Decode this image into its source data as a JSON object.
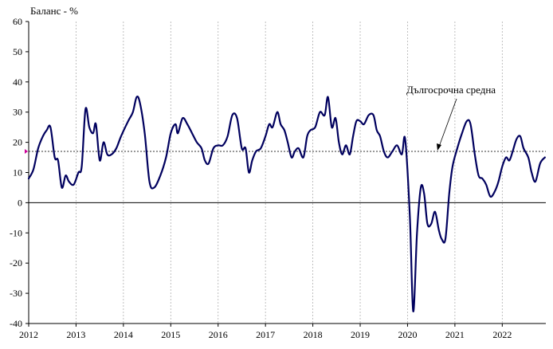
{
  "chart_data": {
    "type": "line",
    "ylabel": "Баланс - %",
    "ylim": [
      -40,
      60
    ],
    "yticks": [
      "60",
      "50",
      "40",
      "30",
      "20",
      "10",
      "0",
      "-10",
      "-20",
      "-30",
      "-40"
    ],
    "xticks": [
      "2012",
      "2013",
      "2014",
      "2015",
      "2016",
      "2017",
      "2018",
      "2019",
      "2020",
      "2021",
      "2022"
    ],
    "xlim": [
      2012.0,
      2022.92
    ],
    "vertical_grid": true,
    "horizontal_grid": false,
    "long_term_average": 17.0,
    "annotation": "Дългосрочна средна",
    "colors": {
      "series": "#00005e",
      "average": "#333333",
      "marker": "#cc0099"
    },
    "series": [
      {
        "x": [
          2012.0,
          2012.1,
          2012.2,
          2012.3,
          2012.38,
          2012.46,
          2012.55,
          2012.62,
          2012.7,
          2012.78,
          2012.85,
          2012.95,
          2013.05,
          2013.12,
          2013.2,
          2013.28,
          2013.36,
          2013.42,
          2013.5,
          2013.58,
          2013.66,
          2013.75,
          2013.85,
          2013.95,
          2014.1,
          2014.2,
          2014.28,
          2014.35,
          2014.45,
          2014.55,
          2014.65,
          2014.78,
          2014.9,
          2015.0,
          2015.1,
          2015.15,
          2015.25,
          2015.35,
          2015.45,
          2015.55,
          2015.65,
          2015.72,
          2015.8,
          2015.9,
          2016.0,
          2016.1,
          2016.2,
          2016.3,
          2016.4,
          2016.5,
          2016.58,
          2016.65,
          2016.72,
          2016.8,
          2016.9,
          2017.0,
          2017.08,
          2017.15,
          2017.25,
          2017.32,
          2017.4,
          2017.47,
          2017.55,
          2017.62,
          2017.7,
          2017.8,
          2017.88,
          2017.95,
          2018.05,
          2018.15,
          2018.25,
          2018.32,
          2018.4,
          2018.48,
          2018.55,
          2018.62,
          2018.7,
          2018.78,
          2018.85,
          2018.92,
          2019.0,
          2019.08,
          2019.18,
          2019.28,
          2019.35,
          2019.42,
          2019.5,
          2019.58,
          2019.68,
          2019.78,
          2019.88,
          2019.95,
          2020.05,
          2020.12,
          2020.2,
          2020.28,
          2020.35,
          2020.42,
          2020.5,
          2020.58,
          2020.66,
          2020.72,
          2020.8,
          2020.88,
          2020.95,
          2021.05,
          2021.15,
          2021.25,
          2021.33,
          2021.42,
          2021.5,
          2021.58,
          2021.66,
          2021.75,
          2021.85,
          2021.92,
          2022.0,
          2022.08,
          2022.15,
          2022.22,
          2022.3,
          2022.38,
          2022.45,
          2022.55,
          2022.62,
          2022.7,
          2022.8,
          2022.9
        ],
        "y": [
          8,
          11,
          18,
          22,
          24,
          25,
          15,
          14,
          5,
          9,
          7,
          6,
          10,
          12,
          31,
          25,
          23,
          26,
          14,
          20,
          16,
          16,
          18,
          22,
          27,
          30,
          35,
          33,
          23,
          7,
          5,
          9,
          15,
          23,
          26,
          23,
          28,
          26,
          23,
          20,
          18,
          14,
          13,
          18,
          19,
          19,
          22,
          29,
          28,
          18,
          18,
          10,
          14,
          17,
          18,
          22,
          26,
          25,
          30,
          26,
          24,
          20,
          15,
          17,
          18,
          15,
          22,
          24,
          25,
          30,
          29,
          35,
          25,
          28,
          20,
          16,
          19,
          16,
          22,
          27,
          27,
          26,
          29,
          29,
          24,
          22,
          17,
          15,
          17,
          19,
          16,
          21,
          -5,
          -36,
          -10,
          5,
          3,
          -7,
          -7,
          -3,
          -9,
          -12,
          -12,
          3,
          12,
          18,
          23,
          27,
          26,
          16,
          9,
          8,
          6,
          2,
          4,
          7,
          12,
          15,
          14,
          17,
          21,
          22,
          18,
          15,
          10,
          7,
          13,
          15
        ]
      }
    ]
  }
}
